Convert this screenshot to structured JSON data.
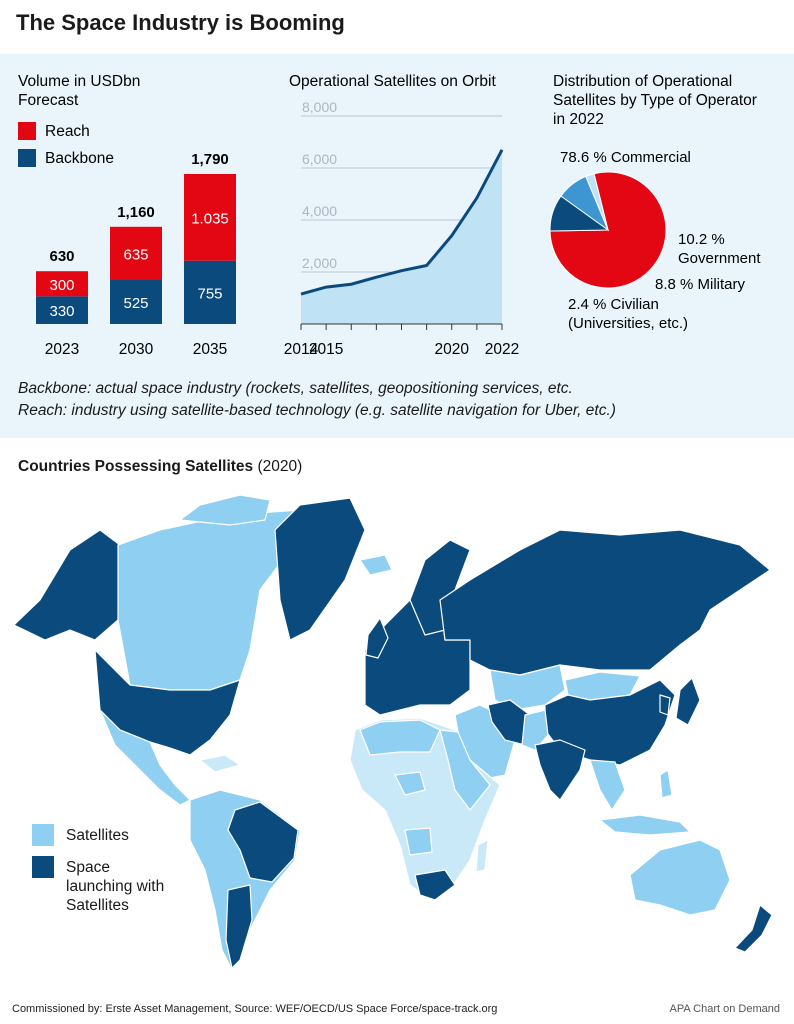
{
  "title": "The Space Industry is Booming",
  "colors": {
    "reach": "#e30613",
    "backbone": "#0a4a7c",
    "area": "#bfe2f5",
    "satellites": "#8ecff2",
    "launch": "#0a4a7c",
    "panel": "#eaf5fb"
  },
  "chart_data": [
    {
      "type": "bar",
      "stacked": true,
      "title": "Volume in USDbn Forecast",
      "categories": [
        "2023",
        "2030",
        "2035"
      ],
      "series": [
        {
          "name": "Backbone",
          "values": [
            330,
            525,
            755
          ],
          "labels": [
            "330",
            "525",
            "755"
          ]
        },
        {
          "name": "Reach",
          "values": [
            300,
            635,
            1035
          ],
          "labels": [
            "300",
            "635",
            "1.035"
          ]
        }
      ],
      "totals": [
        "630",
        "1,160",
        "1,790"
      ],
      "legend": "top-left",
      "ylim": [
        0,
        1790
      ]
    },
    {
      "type": "area",
      "title": "Operational Satellites on Orbit",
      "x": [
        2014,
        2015,
        2016,
        2017,
        2018,
        2019,
        2020,
        2021,
        2022
      ],
      "y": [
        1150,
        1420,
        1530,
        1800,
        2050,
        2250,
        3400,
        4850,
        6700
      ],
      "xticks": [
        "2014",
        "2015",
        "2020",
        "2022"
      ],
      "xtick_values": [
        2014,
        2015,
        2020,
        2022
      ],
      "yticks": [
        "2,000",
        "4,000",
        "6,000",
        "8,000"
      ],
      "ytick_values": [
        2000,
        4000,
        6000,
        8000
      ],
      "ylim": [
        0,
        8000
      ],
      "xlim": [
        2014,
        2022
      ],
      "grid": true
    },
    {
      "type": "pie",
      "title": "Distribution of Operational Satellites by Type of Operator in 2022",
      "slices": [
        {
          "name": "Commercial",
          "value": 78.6,
          "label": "78.6 % Commercial",
          "color": "#e30613"
        },
        {
          "name": "Civilian",
          "value": 2.4,
          "label": "2.4 % Civilian (Universities, etc.)",
          "color": "#bfe2f5"
        },
        {
          "name": "Military",
          "value": 8.8,
          "label": "8.8 % Military",
          "color": "#3d96d2"
        },
        {
          "name": "Government",
          "value": 10.2,
          "label": "10.2 % Government",
          "color": "#0a4a7c"
        }
      ]
    }
  ],
  "bar_chart": {
    "title_line1": "Volume in USDbn",
    "title_line2": "Forecast",
    "legend_reach": "Reach",
    "legend_backbone": "Backbone"
  },
  "line_chart": {
    "title": "Operational Satellites on Orbit"
  },
  "pie_chart": {
    "title_line1": "Distribution of Operational",
    "title_line2": "Satellites by Type of Operator",
    "title_line3": "in 2022",
    "label_commercial": "78.6 % Commercial",
    "label_government_1": "10.2 %",
    "label_government_2": "Government",
    "label_military": "8.8 % Military",
    "label_civilian_1": "2.4 % Civilian",
    "label_civilian_2": "(Universities, etc.)"
  },
  "notes": {
    "backbone": "Backbone: actual space industry (rockets, satellites, geopositioning services, etc.",
    "reach": "Reach: industry using satellite-based technology (e.g. satellite navigation for Uber, etc.)"
  },
  "map": {
    "title_bold": "Countries Possessing Satellites",
    "title_year": "(2020)",
    "legend_satellites": "Satellites",
    "legend_launch_1": "Space",
    "legend_launch_2": "launching with",
    "legend_launch_3": "Satellites"
  },
  "footer": {
    "left": "Commissioned by: Erste Asset Management, Source: WEF/OECD/US Space Force/space-track.org",
    "right": "APA Chart on Demand"
  }
}
